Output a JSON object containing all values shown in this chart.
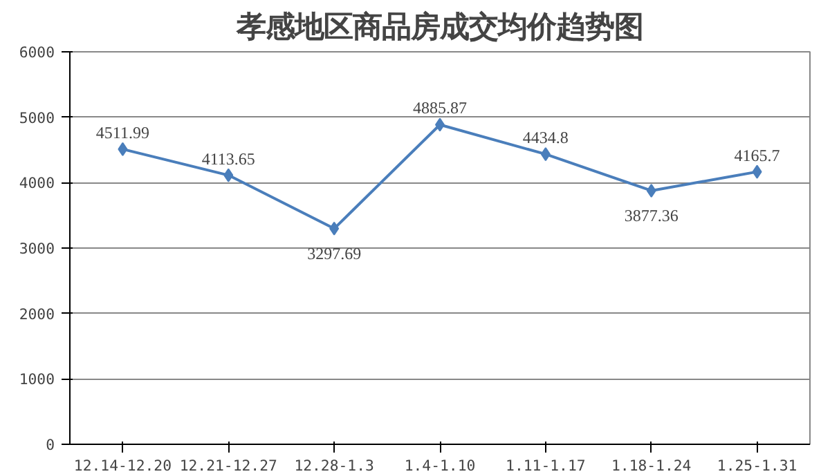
{
  "chart_data": {
    "type": "line",
    "title": "孝感地区商品房成交均价趋势图",
    "categories": [
      "12.14-12.20",
      "12.21-12.27",
      "12.28-1.3",
      "1.4-1.10",
      "1.11-1.17",
      "1.18-1.24",
      "1.25-1.31"
    ],
    "values": [
      4511.99,
      4113.65,
      3297.69,
      4885.87,
      4434.8,
      3877.36,
      4165.7
    ],
    "color": "#4a7ebb",
    "ylim": [
      0,
      6000
    ],
    "yticks": [
      0,
      1000,
      2000,
      3000,
      4000,
      5000,
      6000
    ],
    "grid": "y",
    "marker": "diamond",
    "line_style": "solid",
    "data_labels": true
  }
}
